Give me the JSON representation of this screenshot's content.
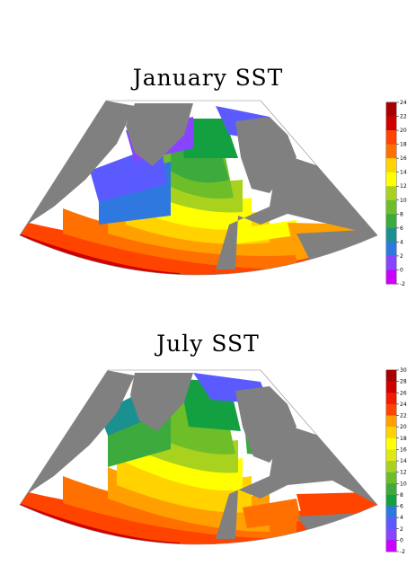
{
  "maps": [
    {
      "title": "January SST",
      "colorbar_ticks": [
        "24",
        "22",
        "20",
        "18",
        "16",
        "14",
        "12",
        "10",
        "8",
        "6",
        "4",
        "2",
        "0",
        "-2"
      ]
    },
    {
      "title": "July SST",
      "colorbar_ticks": [
        "30",
        "28",
        "26",
        "24",
        "22",
        "20",
        "18",
        "16",
        "14",
        "12",
        "10",
        "8",
        "6",
        "4",
        "2",
        "0",
        "-2"
      ]
    }
  ],
  "colors": {
    "land": "#808080",
    "scale": [
      "#cc00ff",
      "#8844ff",
      "#5a5aff",
      "#2f78e0",
      "#1b9090",
      "#13a040",
      "#3caa3c",
      "#6ebe2a",
      "#a8d21e",
      "#e0e814",
      "#ffff00",
      "#ffd200",
      "#ffa000",
      "#ff7000",
      "#ff4400",
      "#f21a00",
      "#d00000",
      "#a80000"
    ]
  }
}
